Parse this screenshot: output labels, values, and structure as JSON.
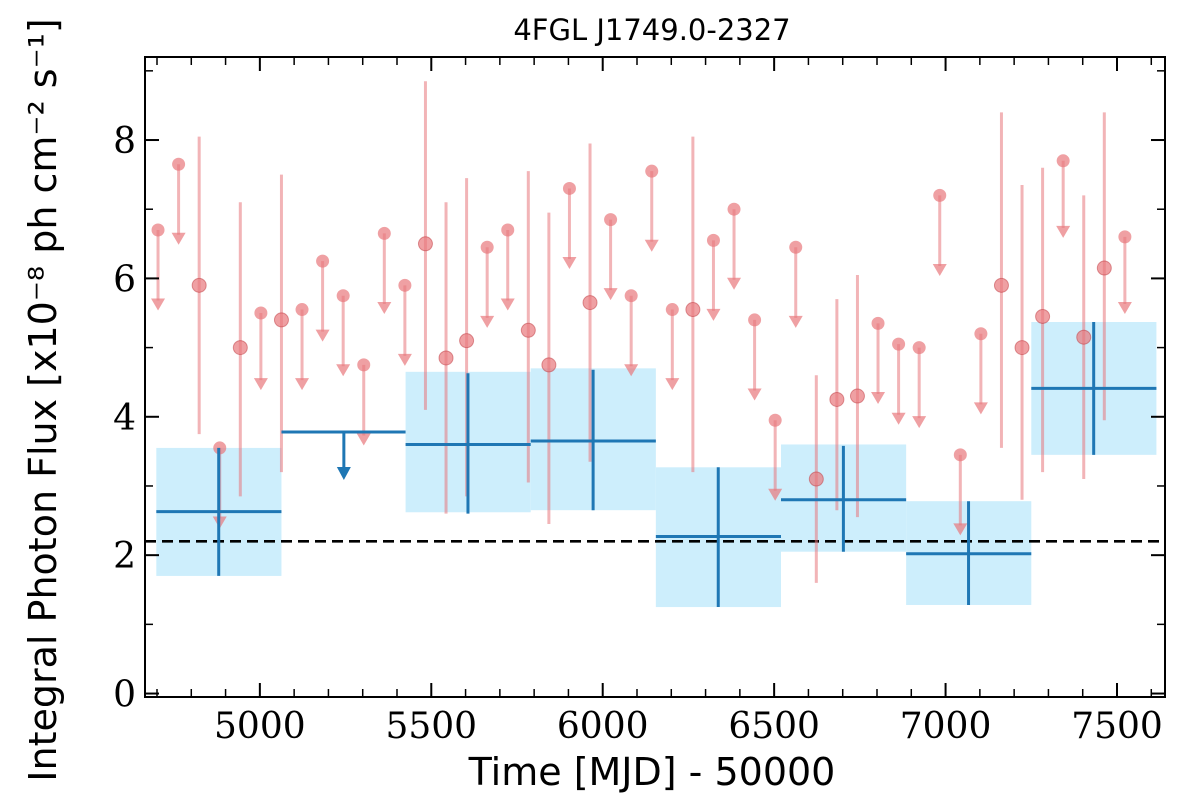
{
  "chart_data": {
    "type": "scatter",
    "title": "4FGL J1749.0-2327",
    "xlabel": "Time [MJD] - 50000",
    "ylabel": "Integral Photon Flux [x10⁻⁸ ph cm⁻² s⁻¹]",
    "xlim": [
      4665,
      7640
    ],
    "ylim": [
      -0.05,
      9.2
    ],
    "xticks": [
      5000,
      5500,
      6000,
      6500,
      7000,
      7500
    ],
    "yticks": [
      0,
      2,
      4,
      6,
      8
    ],
    "grid": false,
    "reference_line": {
      "y": 2.2,
      "style": "dashed",
      "color": "#000000"
    },
    "colors": {
      "short_bins": "#e8777c",
      "long_bins": "#1f77b4",
      "long_band": "#cdeefc"
    },
    "short_bins": [
      {
        "x": 4703,
        "ul": 6.7,
        "to": 5.55
      },
      {
        "x": 4763,
        "ul": 7.65,
        "to": 6.5
      },
      {
        "x": 4823,
        "y": 5.9,
        "lo": 3.75,
        "hi": 8.05
      },
      {
        "x": 4883,
        "ul": 3.55,
        "to": 2.4
      },
      {
        "x": 4943,
        "y": 5.0,
        "lo": 2.85,
        "hi": 7.1
      },
      {
        "x": 5003,
        "ul": 5.5,
        "to": 4.4
      },
      {
        "x": 5063,
        "y": 5.4,
        "lo": 3.2,
        "hi": 7.5
      },
      {
        "x": 5123,
        "ul": 5.55,
        "to": 4.4
      },
      {
        "x": 5183,
        "ul": 6.25,
        "to": 5.1
      },
      {
        "x": 5243,
        "ul": 5.75,
        "to": 4.6
      },
      {
        "x": 5303,
        "ul": 4.75,
        "to": 3.6
      },
      {
        "x": 5363,
        "ul": 6.65,
        "to": 5.5
      },
      {
        "x": 5423,
        "ul": 5.9,
        "to": 4.75
      },
      {
        "x": 5483,
        "y": 6.5,
        "lo": 4.1,
        "hi": 8.85
      },
      {
        "x": 5543,
        "y": 4.85,
        "lo": 2.6,
        "hi": 7.1
      },
      {
        "x": 5603,
        "y": 5.1,
        "lo": 2.85,
        "hi": 7.45
      },
      {
        "x": 5663,
        "ul": 6.45,
        "to": 5.3
      },
      {
        "x": 5723,
        "ul": 6.7,
        "to": 5.55
      },
      {
        "x": 5783,
        "y": 5.25,
        "lo": 3.05,
        "hi": 7.55
      },
      {
        "x": 5843,
        "y": 4.75,
        "lo": 2.45,
        "hi": 6.95
      },
      {
        "x": 5903,
        "ul": 7.3,
        "to": 6.15
      },
      {
        "x": 5963,
        "y": 5.65,
        "lo": 3.35,
        "hi": 7.95
      },
      {
        "x": 6023,
        "ul": 6.85,
        "to": 5.7
      },
      {
        "x": 6083,
        "ul": 5.75,
        "to": 4.6
      },
      {
        "x": 6143,
        "ul": 7.55,
        "to": 6.4
      },
      {
        "x": 6203,
        "ul": 5.55,
        "to": 4.4
      },
      {
        "x": 6263,
        "y": 5.55,
        "lo": 3.2,
        "hi": 8.05
      },
      {
        "x": 6323,
        "ul": 6.55,
        "to": 5.4
      },
      {
        "x": 6383,
        "ul": 7.0,
        "to": 5.85
      },
      {
        "x": 6443,
        "ul": 5.4,
        "to": 4.25
      },
      {
        "x": 6503,
        "ul": 3.95,
        "to": 2.8
      },
      {
        "x": 6563,
        "ul": 6.45,
        "to": 5.3
      },
      {
        "x": 6623,
        "y": 3.1,
        "lo": 1.6,
        "hi": 4.6
      },
      {
        "x": 6683,
        "y": 4.25,
        "lo": 2.65,
        "hi": 5.7
      },
      {
        "x": 6743,
        "y": 4.3,
        "lo": 2.55,
        "hi": 6.05
      },
      {
        "x": 6803,
        "ul": 5.35,
        "to": 4.2
      },
      {
        "x": 6863,
        "ul": 5.05,
        "to": 3.9
      },
      {
        "x": 6923,
        "ul": 5.0,
        "to": 3.85
      },
      {
        "x": 6983,
        "ul": 7.2,
        "to": 6.05
      },
      {
        "x": 7043,
        "ul": 3.45,
        "to": 2.3
      },
      {
        "x": 7103,
        "ul": 5.2,
        "to": 4.05
      },
      {
        "x": 7163,
        "y": 5.9,
        "lo": 3.55,
        "hi": 8.4
      },
      {
        "x": 7223,
        "y": 5.0,
        "lo": 2.8,
        "hi": 7.35
      },
      {
        "x": 7283,
        "y": 5.45,
        "lo": 3.2,
        "hi": 7.6
      },
      {
        "x": 7343,
        "ul": 7.7,
        "to": 6.6
      },
      {
        "x": 7403,
        "y": 5.15,
        "lo": 3.1,
        "hi": 7.2
      },
      {
        "x": 7463,
        "y": 6.15,
        "lo": 3.95,
        "hi": 8.4
      },
      {
        "x": 7523,
        "ul": 6.6,
        "to": 5.5
      }
    ],
    "long_bins": [
      {
        "x0": 4698,
        "x1": 5063,
        "xc": 4880,
        "y": 2.63,
        "lo": 1.7,
        "hi": 3.55,
        "band": [
          1.7,
          3.55
        ]
      },
      {
        "x0": 5063,
        "x1": 5425,
        "xc": 5245,
        "ul": 3.78,
        "to": 3.1
      },
      {
        "x0": 5425,
        "x1": 5790,
        "xc": 5607,
        "y": 3.6,
        "lo": 2.6,
        "hi": 4.63,
        "band": [
          2.62,
          4.65
        ]
      },
      {
        "x0": 5790,
        "x1": 6155,
        "xc": 5972,
        "y": 3.65,
        "lo": 2.65,
        "hi": 4.68,
        "band": [
          2.65,
          4.7
        ]
      },
      {
        "x0": 6155,
        "x1": 6520,
        "xc": 6337,
        "y": 2.27,
        "lo": 1.25,
        "hi": 3.27,
        "band": [
          1.25,
          3.27
        ]
      },
      {
        "x0": 6520,
        "x1": 6885,
        "xc": 6702,
        "y": 2.8,
        "lo": 2.05,
        "hi": 3.58,
        "band": [
          2.05,
          3.6
        ]
      },
      {
        "x0": 6885,
        "x1": 7250,
        "xc": 7067,
        "y": 2.02,
        "lo": 1.28,
        "hi": 2.78,
        "band": [
          1.28,
          2.78
        ]
      },
      {
        "x0": 7250,
        "x1": 7615,
        "xc": 7432,
        "y": 4.41,
        "lo": 3.45,
        "hi": 5.37,
        "band": [
          3.45,
          5.37
        ]
      }
    ]
  }
}
